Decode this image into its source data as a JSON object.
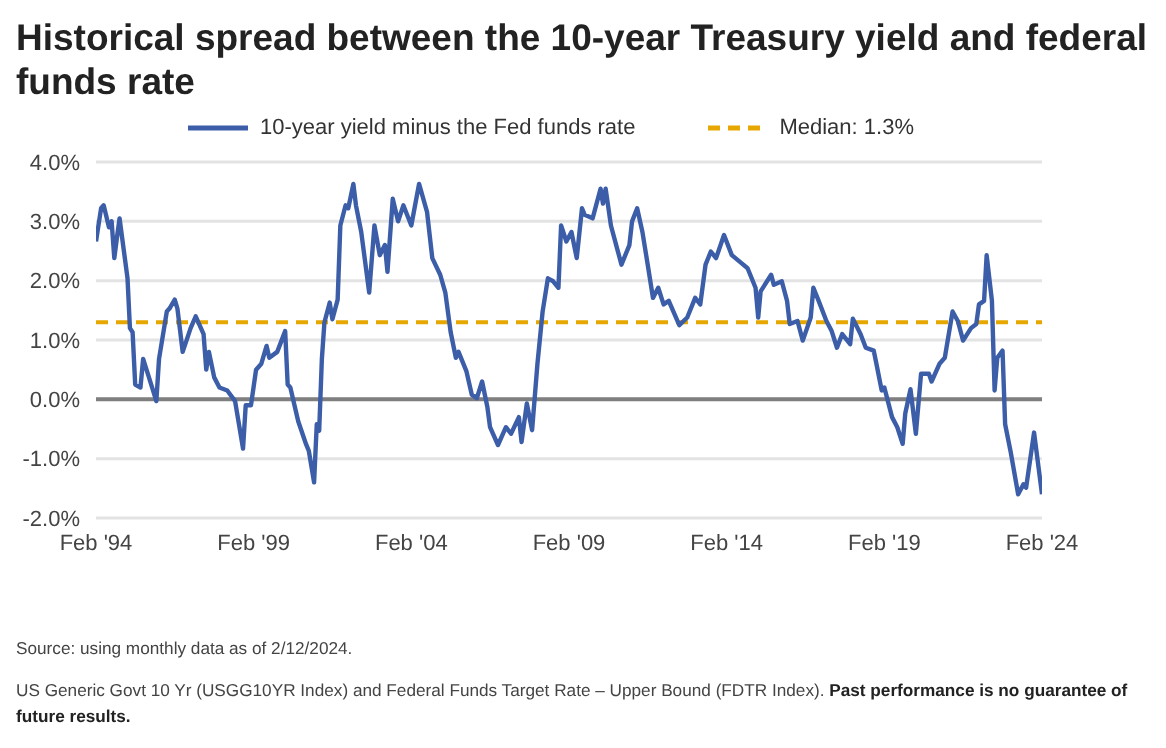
{
  "chart_data": {
    "type": "line",
    "title": "Historical spread between the 10-year Treasury yield and federal funds rate",
    "x": [
      "1994-02",
      "1994-04",
      "1994-05",
      "1994-07",
      "1994-08",
      "1994-09",
      "1994-10",
      "1994-11",
      "1995-01",
      "1995-02",
      "1995-03",
      "1995-04",
      "1995-05",
      "1995-07",
      "1995-08",
      "1995-10",
      "1996-01",
      "1996-02",
      "1996-05",
      "1996-06",
      "1996-08",
      "1996-09",
      "1996-11",
      "1997-02",
      "1997-04",
      "1997-07",
      "1997-08",
      "1997-09",
      "1997-11",
      "1998-01",
      "1998-04",
      "1998-07",
      "1998-08",
      "1998-10",
      "1998-11",
      "1999-01",
      "1999-03",
      "1999-05",
      "1999-07",
      "1999-08",
      "1999-11",
      "2000-02",
      "2000-03",
      "2000-04",
      "2000-07",
      "2000-10",
      "2000-11",
      "2001-01",
      "2001-02",
      "2001-03",
      "2001-04",
      "2001-05",
      "2001-07",
      "2001-08",
      "2001-10",
      "2001-11",
      "2002-01",
      "2002-02",
      "2002-04",
      "2002-05",
      "2002-07",
      "2002-10",
      "2002-12",
      "2003-02",
      "2003-04",
      "2003-05",
      "2003-07",
      "2003-09",
      "2003-11",
      "2004-02",
      "2004-05",
      "2004-08",
      "2004-10",
      "2005-01",
      "2005-03",
      "2005-05",
      "2005-07",
      "2005-08",
      "2005-11",
      "2006-01",
      "2006-03",
      "2006-05",
      "2006-07",
      "2006-08",
      "2006-11",
      "2007-02",
      "2007-04",
      "2007-07",
      "2007-08",
      "2007-10",
      "2007-12",
      "2008-02",
      "2008-04",
      "2008-06",
      "2008-08",
      "2008-10",
      "2008-11",
      "2009-01",
      "2009-03",
      "2009-05",
      "2009-07",
      "2009-08",
      "2009-11",
      "2010-02",
      "2010-03",
      "2010-04",
      "2010-06",
      "2010-08",
      "2010-10",
      "2011-01",
      "2011-02",
      "2011-04",
      "2011-06",
      "2011-08",
      "2011-10",
      "2011-12",
      "2012-02",
      "2012-04",
      "2012-08",
      "2012-11",
      "2013-02",
      "2013-04",
      "2013-06",
      "2013-08",
      "2013-10",
      "2014-01",
      "2014-04",
      "2014-07",
      "2014-10",
      "2015-01",
      "2015-02",
      "2015-03",
      "2015-07",
      "2015-08",
      "2015-11",
      "2016-01",
      "2016-02",
      "2016-05",
      "2016-07",
      "2016-10",
      "2016-11",
      "2017-01",
      "2017-04",
      "2017-06",
      "2017-08",
      "2017-10",
      "2018-01",
      "2018-02",
      "2018-05",
      "2018-07",
      "2018-10",
      "2018-11",
      "2019-01",
      "2019-02",
      "2019-05",
      "2019-07",
      "2019-09",
      "2019-10",
      "2019-12",
      "2020-02",
      "2020-04",
      "2020-07",
      "2020-08",
      "2020-11",
      "2021-01",
      "2021-04",
      "2021-06",
      "2021-08",
      "2021-11",
      "2022-01",
      "2022-02",
      "2022-04",
      "2022-05",
      "2022-07",
      "2022-08",
      "2022-09",
      "2022-11",
      "2022-12",
      "2023-02",
      "2023-05",
      "2023-07",
      "2023-08",
      "2023-11",
      "2024-02"
    ],
    "series": [
      {
        "name": "10-year yield minus the Fed funds rate",
        "color": "#3c5da8",
        "values": [
          2.66,
          3.22,
          3.27,
          2.9,
          3.0,
          2.38,
          2.72,
          3.05,
          2.38,
          2.04,
          1.2,
          1.13,
          0.25,
          0.2,
          0.68,
          0.4,
          -0.03,
          0.68,
          1.48,
          1.53,
          1.68,
          1.53,
          0.8,
          1.2,
          1.4,
          1.1,
          0.5,
          0.8,
          0.37,
          0.2,
          0.15,
          -0.03,
          -0.3,
          -0.83,
          -0.1,
          -0.1,
          0.5,
          0.6,
          0.9,
          0.7,
          0.8,
          1.15,
          0.25,
          0.2,
          -0.37,
          -0.76,
          -0.87,
          -1.4,
          -0.42,
          -0.53,
          0.68,
          1.3,
          1.63,
          1.35,
          1.68,
          2.93,
          3.27,
          3.22,
          3.63,
          3.27,
          2.82,
          1.8,
          2.93,
          2.43,
          2.6,
          2.15,
          3.38,
          3.0,
          3.27,
          2.93,
          3.63,
          3.16,
          2.38,
          2.1,
          1.8,
          1.14,
          0.7,
          0.8,
          0.47,
          0.08,
          0.02,
          0.3,
          -0.13,
          -0.47,
          -0.77,
          -0.47,
          -0.58,
          -0.3,
          -0.72,
          -0.07,
          -0.52,
          0.6,
          1.48,
          2.04,
          1.99,
          1.88,
          2.93,
          2.66,
          2.82,
          2.38,
          3.22,
          3.11,
          3.05,
          3.55,
          3.3,
          3.55,
          2.93,
          2.6,
          2.27,
          2.6,
          3.0,
          3.22,
          2.82,
          2.27,
          1.71,
          1.88,
          1.6,
          1.66,
          1.25,
          1.38,
          1.71,
          1.6,
          2.27,
          2.49,
          2.38,
          2.77,
          2.43,
          2.32,
          2.21,
          1.88,
          1.38,
          1.82,
          2.1,
          1.93,
          1.99,
          1.66,
          1.27,
          1.32,
          0.99,
          1.38,
          1.88,
          1.66,
          1.32,
          1.15,
          0.87,
          1.1,
          0.93,
          1.36,
          1.1,
          0.87,
          0.82,
          0.6,
          0.15,
          0.2,
          -0.3,
          -0.47,
          -0.75,
          -0.24,
          0.17,
          -0.58,
          0.43,
          0.43,
          0.3,
          0.6,
          0.7,
          1.48,
          1.32,
          0.99,
          1.2,
          1.27,
          1.6,
          1.66,
          2.43,
          1.66,
          0.15,
          0.7,
          0.82,
          -0.42,
          -0.87,
          -1.6,
          -1.43,
          -1.49,
          -0.56,
          -1.6
        ]
      }
    ],
    "xlim": [
      "1994-02",
      "2024-02"
    ],
    "xticks": [
      {
        "value": "1994-02",
        "label": "Feb '94"
      },
      {
        "value": "1999-02",
        "label": "Feb '99"
      },
      {
        "value": "2004-02",
        "label": "Feb '04"
      },
      {
        "value": "2009-02",
        "label": "Feb '09"
      },
      {
        "value": "2014-02",
        "label": "Feb '14"
      },
      {
        "value": "2019-02",
        "label": "Feb '19"
      },
      {
        "value": "2024-02",
        "label": "Feb '24"
      }
    ],
    "ylim": [
      -2,
      4
    ],
    "yticks": [
      {
        "value": -2,
        "label": "-2.0%"
      },
      {
        "value": -1,
        "label": "-1.0%"
      },
      {
        "value": 0,
        "label": "0.0%"
      },
      {
        "value": 1,
        "label": "1.0%"
      },
      {
        "value": 2,
        "label": "2.0%"
      },
      {
        "value": 3,
        "label": "3.0%"
      },
      {
        "value": 4,
        "label": "4.0%"
      }
    ],
    "ref_lines": [
      {
        "axis": "y",
        "value": 0,
        "color": "#7f7f7f",
        "line_style": "solid"
      },
      {
        "axis": "y",
        "value": 1.3,
        "label": "Median: 1.3%",
        "color": "#e6a800",
        "line_style": "dashed"
      }
    ],
    "grid": "y",
    "legend": "top",
    "marker": "none",
    "line_style": "solid",
    "annotations": [
      "Source: using monthly data as of 2/12/2024.",
      "US Generic Govt 10 Yr (USGG10YR Index) and Federal Funds Target Rate – Upper Bound (FDTR Index).",
      "Past performance is no guarantee of future results."
    ]
  }
}
